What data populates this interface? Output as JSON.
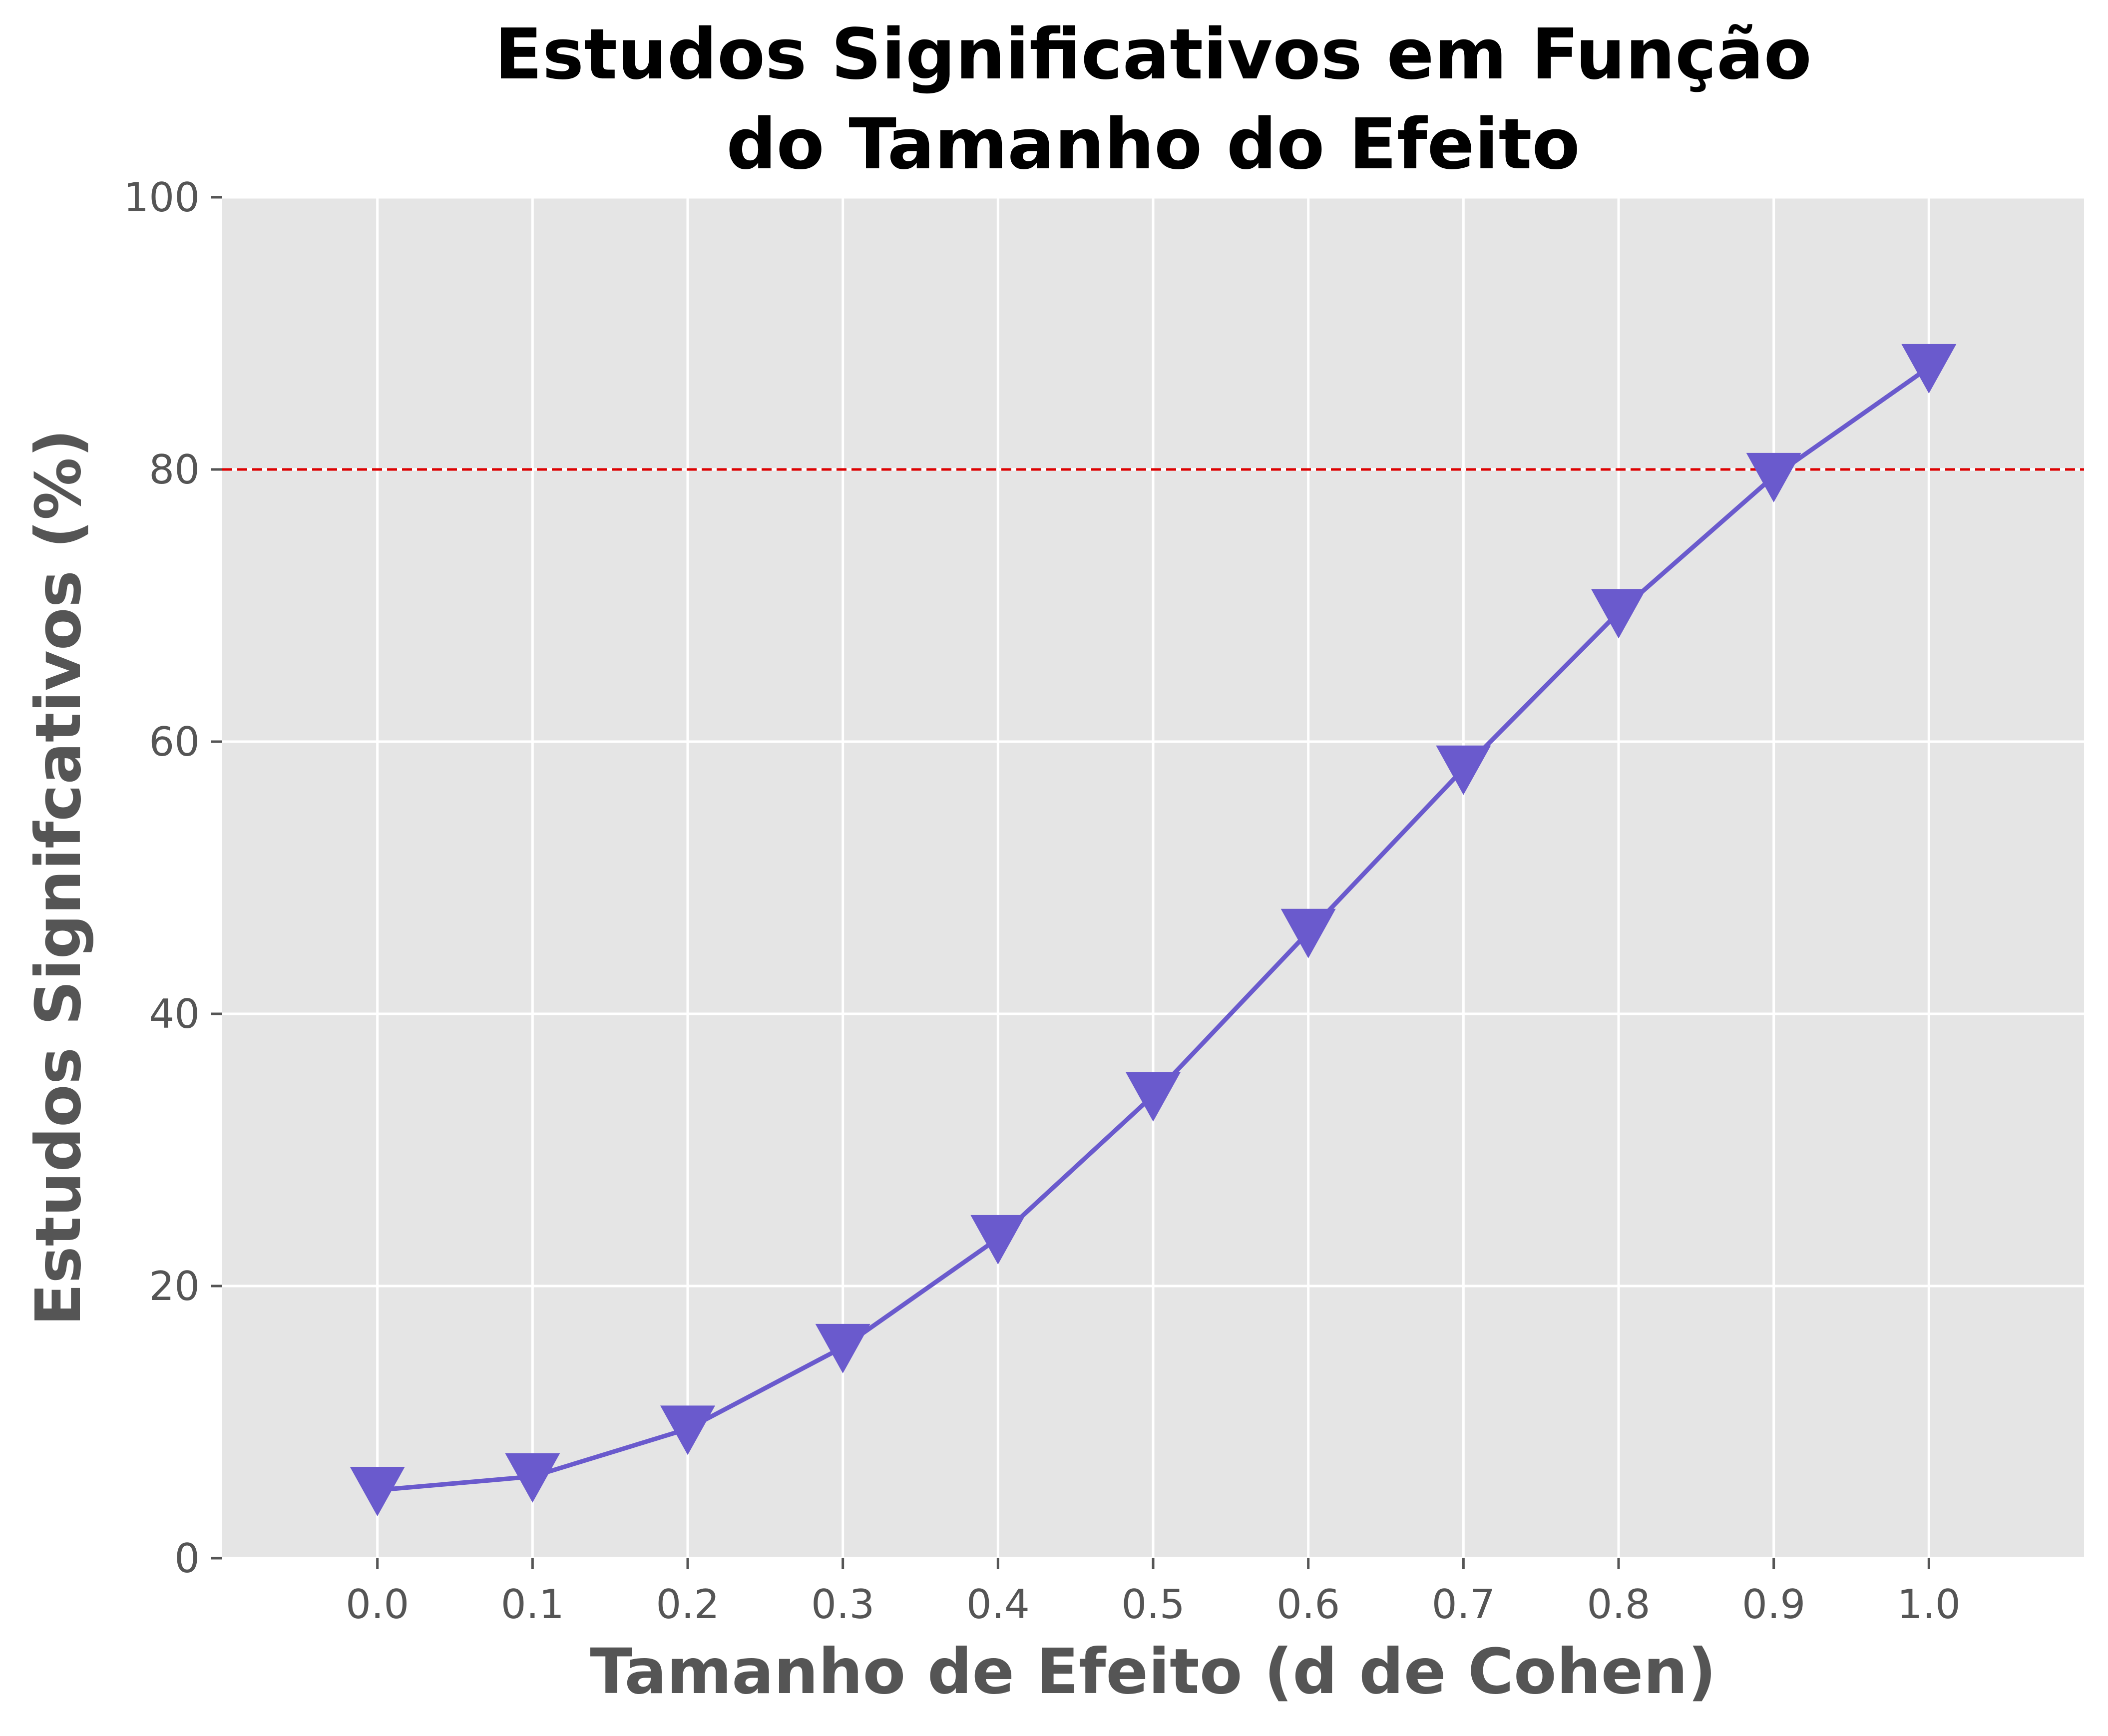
{
  "chart_data": {
    "type": "line",
    "title_line1": "Estudos Significativos em Função",
    "title_line2": "do Tamanho do Efeito",
    "xlabel": "Tamanho de Efeito (d de Cohen)",
    "ylabel": "Estudos Signifcativos (%)",
    "x": [
      0.0,
      0.1,
      0.2,
      0.3,
      0.4,
      0.5,
      0.6,
      0.7,
      0.8,
      0.9,
      1.0
    ],
    "y": [
      5.0,
      6.0,
      9.5,
      15.5,
      23.5,
      34.0,
      46.0,
      58.0,
      69.5,
      79.5,
      87.5
    ],
    "xlim": [
      -0.1,
      1.1
    ],
    "ylim": [
      0,
      100
    ],
    "xticks": [
      "0.0",
      "0.1",
      "0.2",
      "0.3",
      "0.4",
      "0.5",
      "0.6",
      "0.7",
      "0.8",
      "0.9",
      "1.0"
    ],
    "yticks": [
      "0",
      "20",
      "40",
      "60",
      "80",
      "100"
    ],
    "threshold": 80,
    "marker": "triangle-down",
    "grid": true,
    "colors": {
      "line": "#6a5acd",
      "threshold": "#dd0000",
      "plot_background": "#e5e5e5",
      "grid": "#ffffff"
    }
  }
}
